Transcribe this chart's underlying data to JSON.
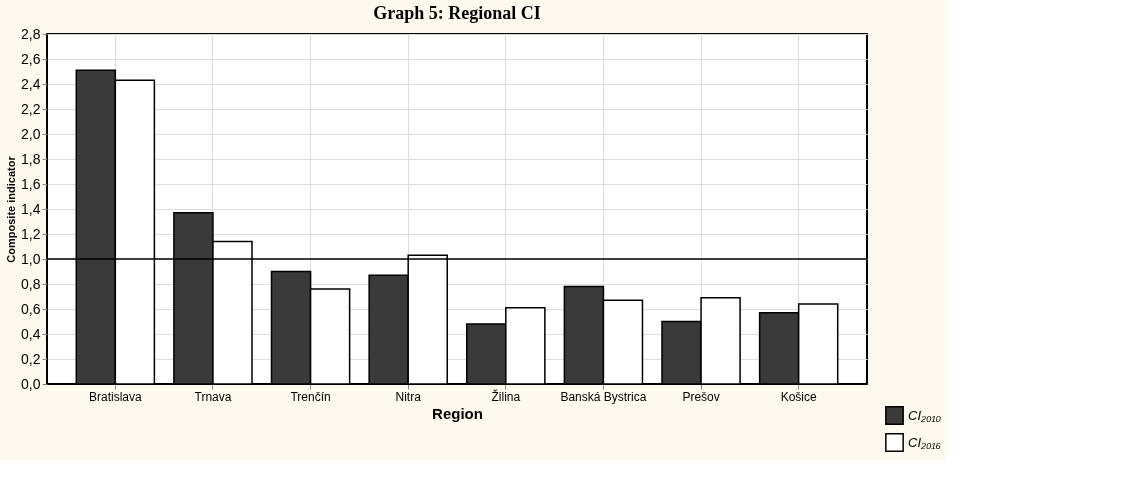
{
  "chart_data": {
    "type": "bar",
    "title": "Graph 5: Regional CI",
    "xlabel": "Region",
    "ylabel": "Composite indicator",
    "categories": [
      "Bratislava",
      "Trnava",
      "Trenčín",
      "Nitra",
      "Žilina",
      "Banská Bystrica",
      "Prešov",
      "Košice"
    ],
    "series": [
      {
        "name": "CI₂₀₁₀",
        "color": "#3a3a3a",
        "values": [
          2.51,
          1.37,
          0.9,
          0.87,
          0.48,
          0.78,
          0.5,
          0.57
        ]
      },
      {
        "name": "CI₂₀₁₆",
        "color": "#ffffff",
        "values": [
          2.43,
          1.14,
          0.76,
          1.03,
          0.61,
          0.67,
          0.69,
          0.64
        ]
      }
    ],
    "ylim": [
      0,
      2.8
    ],
    "yticks": [
      {
        "value": 0,
        "label": "0,0"
      },
      {
        "value": 0.2,
        "label": "0,2"
      },
      {
        "value": 0.4,
        "label": "0,4"
      },
      {
        "value": 0.6,
        "label": "0,6"
      },
      {
        "value": 0.8,
        "label": "0,8"
      },
      {
        "value": 1.0,
        "label": "1,0"
      },
      {
        "value": 1.2,
        "label": "1,2"
      },
      {
        "value": 1.4,
        "label": "1,4"
      },
      {
        "value": 1.6,
        "label": "1,6"
      },
      {
        "value": 1.8,
        "label": "1,8"
      },
      {
        "value": 2.0,
        "label": "2,0"
      },
      {
        "value": 2.2,
        "label": "2,2"
      },
      {
        "value": 2.4,
        "label": "2,4"
      },
      {
        "value": 2.6,
        "label": "2,6"
      },
      {
        "value": 2.8,
        "label": "2,8"
      }
    ],
    "ref_lines": [
      {
        "axis": "y",
        "value": 1.0,
        "color": "#000000"
      }
    ],
    "grid": true,
    "legend": "bottom right"
  }
}
